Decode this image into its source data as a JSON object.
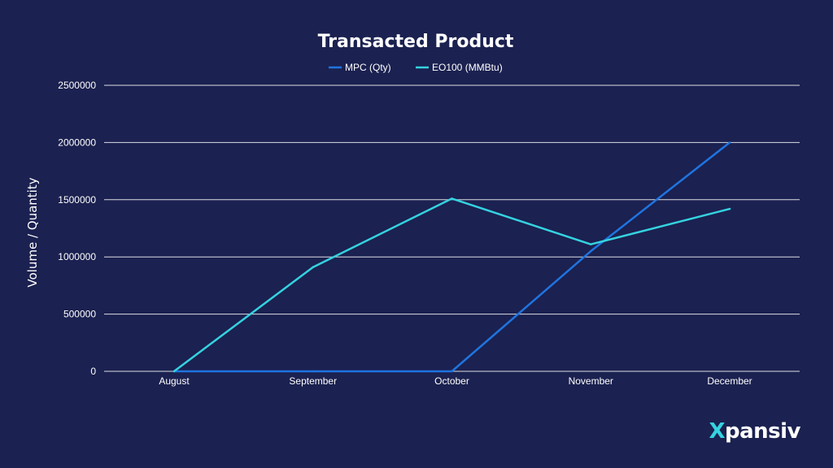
{
  "brand": {
    "logo_text_first": "X",
    "logo_text_rest": "pansiv",
    "accent_color": "#35d2e0"
  },
  "colors": {
    "background": "#1b2150",
    "grid": "#ffffff",
    "text": "#ffffff"
  },
  "chart_data": {
    "type": "line",
    "title": "Transacted Product",
    "xlabel": "",
    "ylabel": "Volume / Quantity",
    "categories": [
      "August",
      "September",
      "October",
      "November",
      "December"
    ],
    "ylim": [
      0,
      2500000
    ],
    "yticks": [
      0,
      500000,
      1000000,
      1500000,
      2000000,
      2500000
    ],
    "ytick_labels": [
      "0",
      "500000",
      "1000000",
      "1500000",
      "2000000",
      "2500000"
    ],
    "grid": true,
    "legend_position": "top-center",
    "series": [
      {
        "name": "MPC (Qty)",
        "color": "#1f74e0",
        "values": [
          0,
          0,
          0,
          1050000,
          2000000
        ]
      },
      {
        "name": "EO100 (MMBtu)",
        "color": "#35d2e0",
        "values": [
          0,
          910000,
          1510000,
          1110000,
          1420000
        ]
      }
    ]
  }
}
